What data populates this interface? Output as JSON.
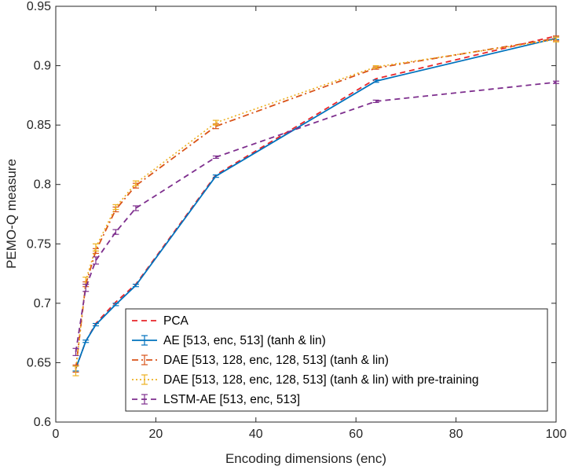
{
  "chart_data": {
    "type": "line",
    "title": "",
    "xlabel": "Encoding dimensions (enc)",
    "ylabel": "PEMO-Q measure",
    "xlim": [
      0,
      100
    ],
    "ylim": [
      0.6,
      0.95
    ],
    "xticks": [
      0,
      20,
      40,
      60,
      80,
      100
    ],
    "yticks": [
      0.6,
      0.65,
      0.7,
      0.75,
      0.8,
      0.85,
      0.9,
      0.95
    ],
    "xtick_labels": [
      "0",
      "20",
      "40",
      "60",
      "80",
      "100"
    ],
    "ytick_labels": [
      "0.6",
      "0.65",
      "0.7",
      "0.75",
      "0.8",
      "0.85",
      "0.9",
      "0.95"
    ],
    "grid": false,
    "legend_position": "bottom-right",
    "x": [
      4,
      6,
      8,
      12,
      16,
      32,
      64,
      100
    ],
    "series": [
      {
        "name": "PCA",
        "color": "#e8262a",
        "dash": "dashed",
        "errorbars": false,
        "values": [
          0.645,
          0.668,
          0.683,
          0.701,
          0.716,
          0.808,
          0.889,
          0.925
        ]
      },
      {
        "name": "AE [513, enc, 513] (tanh & lin)",
        "color": "#0072bd",
        "dash": "solid",
        "errorbars": true,
        "values": [
          0.645,
          0.668,
          0.682,
          0.699,
          0.715,
          0.807,
          0.887,
          0.923
        ],
        "errors": [
          0.002,
          0.001,
          0.001,
          0.001,
          0.001,
          0.001,
          0.001,
          0.001
        ]
      },
      {
        "name": "DAE [513, 128, enc, 128, 513] (tanh & lin)",
        "color": "#d95319",
        "dash": "dashdot",
        "errorbars": true,
        "values": [
          0.645,
          0.716,
          0.744,
          0.779,
          0.799,
          0.849,
          0.898,
          0.923
        ],
        "errors": [
          0.003,
          0.002,
          0.002,
          0.002,
          0.002,
          0.002,
          0.001,
          0.002
        ]
      },
      {
        "name": "DAE [513, 128, enc, 128, 513] (tanh & lin) with pre-training",
        "color": "#edb120",
        "dash": "dotted",
        "errorbars": true,
        "values": [
          0.643,
          0.719,
          0.747,
          0.781,
          0.801,
          0.852,
          0.899,
          0.922
        ],
        "errors": [
          0.004,
          0.003,
          0.003,
          0.002,
          0.002,
          0.002,
          0.001,
          0.002
        ]
      },
      {
        "name": "LSTM-AE [513, enc, 513]",
        "color": "#7e2f8e",
        "dash": "dashed",
        "errorbars": true,
        "values": [
          0.659,
          0.713,
          0.736,
          0.76,
          0.78,
          0.823,
          0.87,
          0.886
        ],
        "errors": [
          0.003,
          0.003,
          0.003,
          0.002,
          0.002,
          0.001,
          0.001,
          0.001
        ]
      }
    ]
  }
}
